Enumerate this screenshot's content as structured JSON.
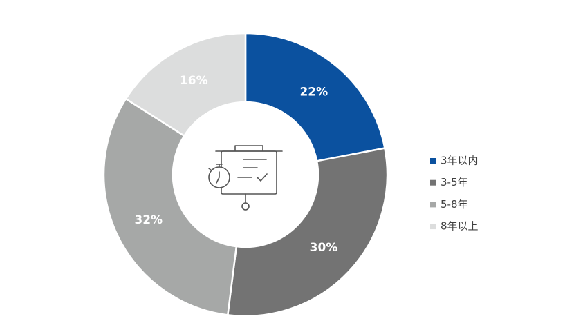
{
  "chart_data": {
    "type": "pie",
    "categories": [
      "3年以内",
      "3-5年",
      "5-8年",
      "8年以上"
    ],
    "values": [
      22,
      30,
      32,
      16
    ],
    "value_labels": [
      "22%",
      "30%",
      "32%",
      "16%"
    ],
    "colors": [
      "#0b519f",
      "#737373",
      "#a6a8a7",
      "#dcdddd"
    ]
  }
}
